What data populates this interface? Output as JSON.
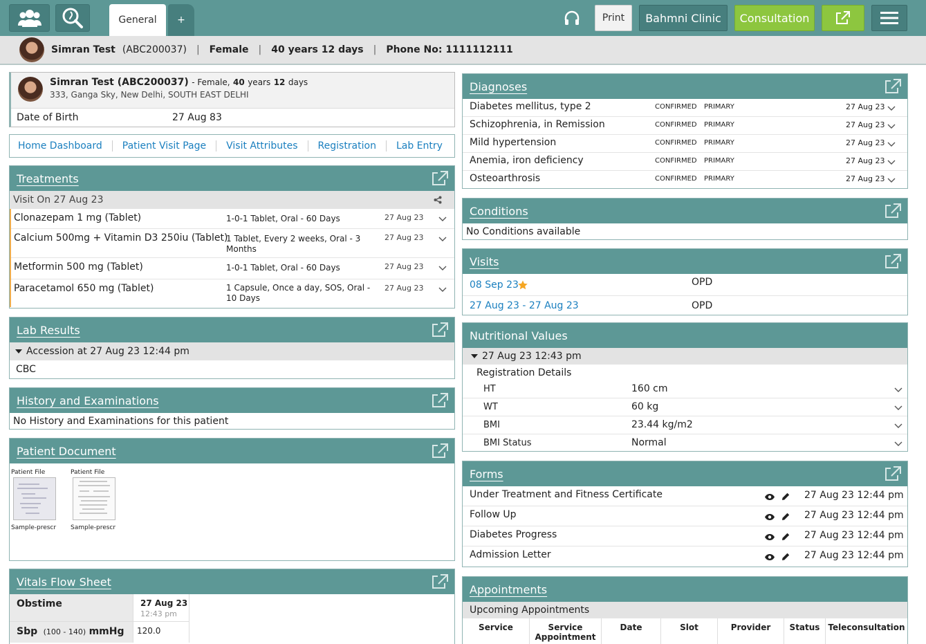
{
  "topbar": {
    "tab_general": "General",
    "tab_plus": "+",
    "print_label": "Print",
    "clinic_label": "Bahmni Clinic",
    "consultation_label": "Consultation"
  },
  "patient": {
    "name": "Simran Test",
    "id": "(ABC200037)",
    "gender": "Female",
    "age": "40 years 12 days",
    "phone": "Phone No: 1111112111",
    "card_name_id": "Simran Test (ABC200037)",
    "card_gender": "- Female,",
    "card_age_years_num": "40",
    "card_age_years_word": "years",
    "card_age_days_num": "12",
    "card_age_days_word": "days",
    "address": "333, Ganga Sky, New Delhi, SOUTH EAST DELHI",
    "dob_label": "Date of Birth",
    "dob_value": "27 Aug 83"
  },
  "nav_links": [
    "Home Dashboard",
    "Patient Visit Page",
    "Visit Attributes",
    "Registration",
    "Lab Entry"
  ],
  "treatments": {
    "title": "Treatments",
    "visit_label": "Visit On 27 Aug 23",
    "items": [
      {
        "drug": "Clonazepam 1 mg (Tablet)",
        "dose": "1-0-1 Tablet, Oral - 60 Days",
        "date": "27 Aug 23"
      },
      {
        "drug": "Calcium 500mg + Vitamin D3 250iu (Tablet)",
        "dose": "1 Tablet, Every 2 weeks, Oral - 3 Months",
        "date": "27 Aug 23"
      },
      {
        "drug": "Metformin 500 mg (Tablet)",
        "dose": "1-0-1 Tablet, Oral - 60 Days",
        "date": "27 Aug 23"
      },
      {
        "drug": "Paracetamol 650 mg (Tablet)",
        "dose": "1 Capsule, Once a day, SOS, Oral - 10 Days",
        "date": "27 Aug 23"
      }
    ]
  },
  "lab_results": {
    "title": "Lab Results",
    "accession": "Accession at 27 Aug 23 12:44 pm",
    "test": "CBC"
  },
  "history": {
    "title": "History and Examinations",
    "empty": "No History and Examinations for this patient"
  },
  "documents": {
    "title": "Patient Document",
    "items": [
      {
        "label": "Patient File",
        "caption": "Sample-prescr"
      },
      {
        "label": "Patient File",
        "caption": "Sample-prescr"
      }
    ]
  },
  "vitals": {
    "title": "Vitals Flow Sheet",
    "obstime_label": "Obstime",
    "col_date": "27 Aug 23",
    "col_time": "12:43 pm",
    "sbp_label": "Sbp",
    "sbp_range": "(100 - 140)",
    "sbp_unit": "mmHg",
    "sbp_value": "120.0"
  },
  "diagnoses": {
    "title": "Diagnoses",
    "items": [
      {
        "name": "Diabetes mellitus, type 2",
        "certainty": "CONFIRMED",
        "order": "PRIMARY",
        "date": "27 Aug 23"
      },
      {
        "name": "Schizophrenia, in Remission",
        "certainty": "CONFIRMED",
        "order": "PRIMARY",
        "date": "27 Aug 23"
      },
      {
        "name": "Mild hypertension",
        "certainty": "CONFIRMED",
        "order": "PRIMARY",
        "date": "27 Aug 23"
      },
      {
        "name": "Anemia, iron deficiency",
        "certainty": "CONFIRMED",
        "order": "PRIMARY",
        "date": "27 Aug 23"
      },
      {
        "name": "Osteoarthrosis",
        "certainty": "CONFIRMED",
        "order": "PRIMARY",
        "date": "27 Aug 23"
      }
    ]
  },
  "conditions": {
    "title": "Conditions",
    "empty": "No Conditions available"
  },
  "visits": {
    "title": "Visits",
    "items": [
      {
        "dates": "08 Sep 23",
        "type": "OPD"
      },
      {
        "dates": "27 Aug 23 - 27 Aug 23",
        "type": "OPD"
      }
    ]
  },
  "nutrition": {
    "title": "Nutritional Values",
    "date": "27 Aug 23 12:43 pm",
    "section": "Registration Details",
    "rows": [
      {
        "label": "HT",
        "value": "160 cm"
      },
      {
        "label": "WT",
        "value": "60 kg"
      },
      {
        "label": "BMI",
        "value": "23.44 kg/m2"
      },
      {
        "label": "BMI Status",
        "value": "Normal"
      }
    ]
  },
  "forms": {
    "title": "Forms",
    "items": [
      {
        "name": "Under Treatment and Fitness Certificate",
        "date": "27 Aug 23 12:44 pm"
      },
      {
        "name": "Follow Up",
        "date": "27 Aug 23 12:44 pm"
      },
      {
        "name": "Diabetes Progress",
        "date": "27 Aug 23 12:44 pm"
      },
      {
        "name": "Admission Letter",
        "date": "27 Aug 23 12:44 pm"
      }
    ]
  },
  "appointments": {
    "title": "Appointments",
    "subheader": "Upcoming Appointments",
    "columns": [
      "Service",
      "Service Appointment",
      "Date",
      "Slot",
      "Provider",
      "Status",
      "Teleconsultation"
    ]
  },
  "colors": {
    "header": "#5d9896",
    "header_dark": "#477f7e",
    "accent_green": "#8dc63f",
    "link_blue": "#1a7fbf",
    "star": "#f5a623"
  }
}
